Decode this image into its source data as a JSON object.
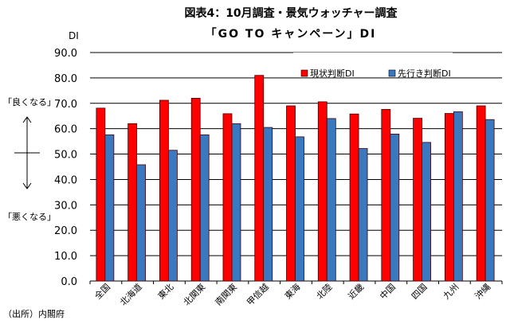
{
  "chart_data": {
    "type": "bar",
    "title": "図表4：10月調査・景気ウォッチャー調査",
    "subtitle": "「GO TO キャンペーン」DI",
    "ylabel": "DI",
    "ylim": [
      0,
      90
    ],
    "yticks": [
      "0.0",
      "10.0",
      "20.0",
      "30.0",
      "40.0",
      "50.0",
      "60.0",
      "70.0",
      "80.0",
      "90.0"
    ],
    "grid": true,
    "legend_position": "top-right",
    "categories": [
      "全国",
      "北海道",
      "東北",
      "北関東",
      "南関東",
      "甲信越",
      "東海",
      "北陸",
      "近畿",
      "中国",
      "四国",
      "九州",
      "沖縄"
    ],
    "series": [
      {
        "name": "現状判断DI",
        "color": "#ff0000",
        "values": [
          68.1,
          62.0,
          71.2,
          72.0,
          65.9,
          81.0,
          69.0,
          70.6,
          65.8,
          67.6,
          64.1,
          66.0,
          69.0
        ]
      },
      {
        "name": "先行き判断DI",
        "color": "#3a78c0",
        "values": [
          57.6,
          45.8,
          51.5,
          57.6,
          62.0,
          60.5,
          56.8,
          64.0,
          52.2,
          57.9,
          54.6,
          66.7,
          63.6
        ]
      }
    ],
    "annotations": {
      "good": "「良くなる」",
      "bad": "「悪くなる」"
    },
    "source": "（出所）内閣府"
  }
}
